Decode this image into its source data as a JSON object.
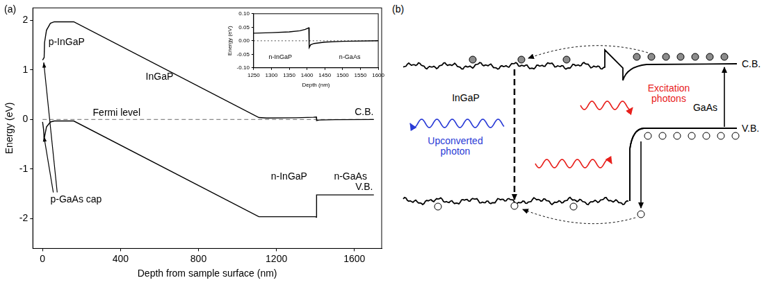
{
  "chart_data": [
    {
      "type": "line",
      "panel_label": "(a)",
      "x_label": "Depth from sample surface (nm)",
      "y_label": "Energy (eV)",
      "xlim": [
        -50,
        1740
      ],
      "xticks": [
        0,
        400,
        800,
        1200,
        1600
      ],
      "ylim": [
        -2.6,
        2.25
      ],
      "yticks": [
        -2,
        -1,
        0,
        1,
        2
      ],
      "grid": false,
      "annotations": [
        "p-InGaP",
        "InGaP",
        "n-InGaP",
        "n-GaAs",
        "p-GaAs cap"
      ],
      "series": [
        {
          "name": "C.B.",
          "color": "#000000",
          "x": [
            0,
            8,
            10,
            20,
            40,
            60,
            160,
            1110,
            1150,
            1300,
            1390,
            1405,
            1406,
            1420,
            1500,
            1700
          ],
          "values": [
            1.2,
            1.25,
            1.55,
            1.8,
            1.94,
            1.97,
            1.97,
            0.04,
            0.03,
            0.035,
            0.045,
            0.05,
            -0.02,
            -0.01,
            -0.003,
            0
          ]
        },
        {
          "name": "V.B.",
          "color": "#000000",
          "x": [
            0,
            5,
            8,
            10,
            20,
            40,
            60,
            160,
            1110,
            1400,
            1405,
            1406,
            1700
          ],
          "values": [
            -0.05,
            -0.2,
            -0.38,
            -0.35,
            -0.15,
            -0.05,
            -0.03,
            -0.03,
            -1.96,
            -1.96,
            -1.97,
            -1.52,
            -1.52
          ]
        },
        {
          "name": "Fermi level",
          "color": "#888888",
          "line_style": "dashed",
          "x": [
            0,
            1700
          ],
          "values": [
            0,
            0
          ]
        }
      ]
    },
    {
      "type": "line",
      "x_label": "Depth (nm)",
      "y_label": "Energy (eV)",
      "xlim": [
        1250,
        1600
      ],
      "xticks": [
        1250,
        1300,
        1350,
        1400,
        1450,
        1500,
        1550,
        1600
      ],
      "ylim": [
        -0.1,
        0.1
      ],
      "yticks": [
        {
          "value": -0.1,
          "label": "-0.10"
        },
        -0.05,
        {
          "value": 0,
          "label": "0.00"
        },
        0.05,
        {
          "value": 0.1,
          "label": "0.10"
        }
      ],
      "grid": false,
      "annotations": [
        "n-InGaP",
        "n-GaAs"
      ],
      "series": [
        {
          "color": "#000000",
          "x": [
            1250,
            1300,
            1350,
            1380,
            1395,
            1405,
            1406,
            1410,
            1420,
            1450,
            1500,
            1600
          ],
          "values": [
            0.028,
            0.03,
            0.033,
            0.037,
            0.042,
            0.048,
            -0.025,
            -0.015,
            -0.01,
            -0.005,
            -0.002,
            0
          ]
        },
        {
          "color": "#888888",
          "line_style": "dotted",
          "x": [
            1250,
            1600
          ],
          "values": [
            0,
            0
          ]
        }
      ]
    }
  ],
  "diagram": {
    "panel_label": "(b)",
    "labels": {
      "left_layer": "InGaP",
      "right_layer": "GaAs",
      "conduction_band": "C.B.",
      "valence_band": "V.B.",
      "emission": "Upconverted photon",
      "excitation": "Excitation photons"
    }
  }
}
